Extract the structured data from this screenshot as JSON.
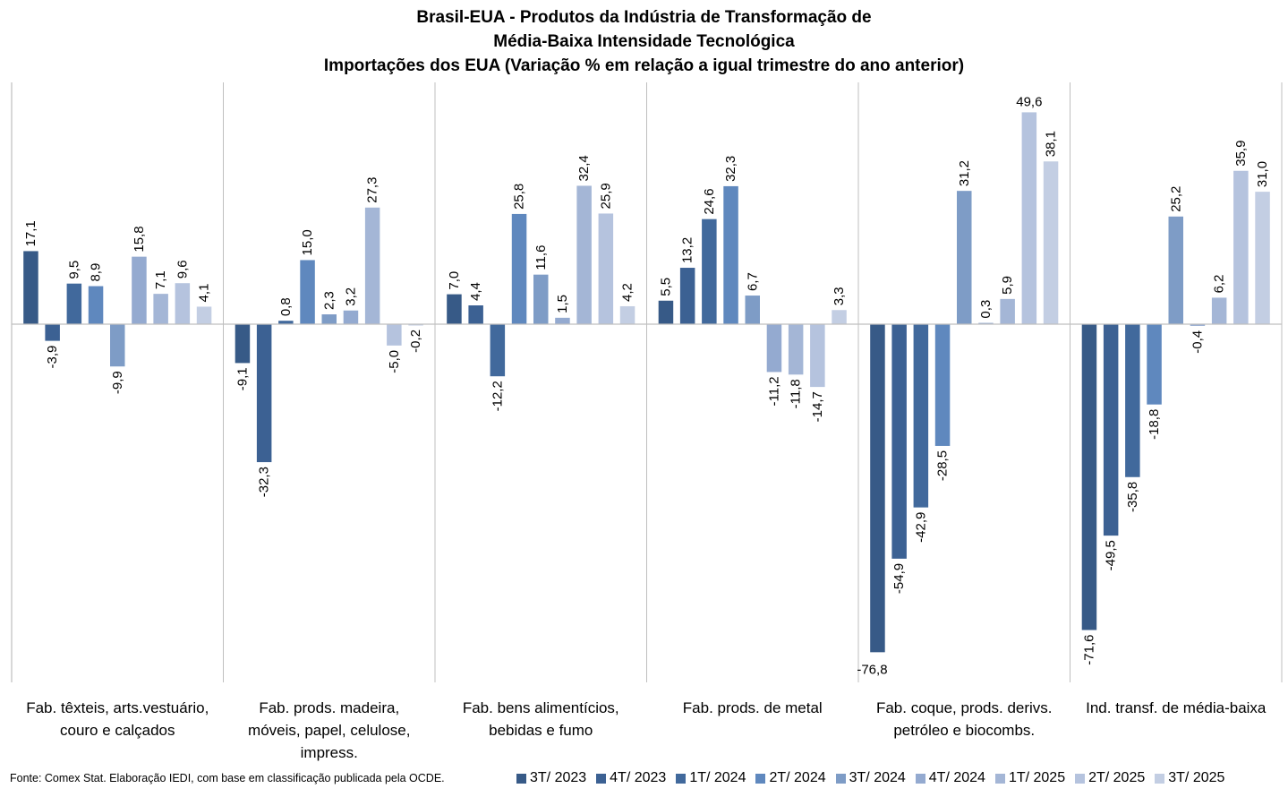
{
  "chart_data": {
    "type": "bar",
    "title": "Brasil-EUA - Produtos da Indústria de Transformação de",
    "title_lines": [
      "Brasil-EUA - Produtos da Indústria de Transformação de",
      "Média-Baixa Intensidade Tecnológica",
      "Importações dos EUA (Variação % em relação a igual trimestre do ano anterior)"
    ],
    "xlabel": "",
    "ylabel": "",
    "ylim": [
      -80,
      55
    ],
    "grid": false,
    "legend_position": "bottom-right",
    "categories": [
      "Fab. têxteis, arts.vestuário, couro e calçados",
      "Fab. prods. madeira, móveis, papel, celulose, impress.",
      "Fab. bens alimentícios, bebidas e fumo",
      "Fab. prods. de metal",
      "Fab. coque, prods. derivs. petróleo e biocombs.",
      "Ind. transf. de média-baixa"
    ],
    "series": [
      {
        "name": "3T/ 2023",
        "color": "#375A87",
        "values": [
          17.1,
          -9.1,
          7.0,
          5.5,
          -76.8,
          -71.6
        ]
      },
      {
        "name": "4T/ 2023",
        "color": "#3C6193",
        "values": [
          -3.9,
          -32.3,
          4.4,
          13.2,
          -54.9,
          -49.5
        ]
      },
      {
        "name": "1T/ 2024",
        "color": "#41699C",
        "values": [
          9.5,
          0.8,
          -12.2,
          24.6,
          -42.9,
          -35.8
        ]
      },
      {
        "name": "2T/ 2024",
        "color": "#5F88BE",
        "values": [
          8.9,
          15.0,
          25.8,
          32.3,
          -28.5,
          -18.8
        ]
      },
      {
        "name": "3T/ 2024",
        "color": "#7E9CC6",
        "values": [
          -9.9,
          2.3,
          11.6,
          6.7,
          31.2,
          25.2
        ]
      },
      {
        "name": "4T/ 2024",
        "color": "#94AAD0",
        "values": [
          15.8,
          3.2,
          1.5,
          -11.2,
          0.3,
          -0.4
        ]
      },
      {
        "name": "1T/ 2025",
        "color": "#A4B6D6",
        "values": [
          7.1,
          27.3,
          32.4,
          -11.8,
          5.9,
          6.2
        ]
      },
      {
        "name": "2T/ 2025",
        "color": "#B5C3DE",
        "values": [
          9.6,
          -5.0,
          25.9,
          -14.7,
          49.6,
          35.9
        ]
      },
      {
        "name": "3T/ 2025",
        "color": "#C3CEE3",
        "values": [
          4.1,
          -0.2,
          4.2,
          3.3,
          38.1,
          31.0
        ]
      }
    ],
    "data_labels": [
      [
        "17,1",
        "-9,1",
        "7,0",
        "5,5",
        "-76,8",
        "-71,6"
      ],
      [
        "-3,9",
        "-32,3",
        "4,4",
        "13,2",
        "-54,9",
        "-49,5"
      ],
      [
        "9,5",
        "0,8",
        "-12,2",
        "24,6",
        "-42,9",
        "-35,8"
      ],
      [
        "8,9",
        "15,0",
        "25,8",
        "32,3",
        "-28,5",
        "-18,8"
      ],
      [
        "-9,9",
        "2,3",
        "11,6",
        "6,7",
        "31,2",
        "25,2"
      ],
      [
        "15,8",
        "3,2",
        "1,5",
        "-11,2",
        "0,3",
        "-0,4"
      ],
      [
        "7,1",
        "27,3",
        "32,4",
        "-11,8",
        "5,9",
        "6,2"
      ],
      [
        "9,6",
        "-5,0",
        "25,9",
        "-14,7",
        "49,6",
        "35,9"
      ],
      [
        "4,1",
        "-0,2",
        "4,2",
        "3,3",
        "38,1",
        "31,0"
      ]
    ],
    "category_label_lines": [
      [
        "Fab. têxteis, arts.vestuário,",
        "couro e calçados"
      ],
      [
        "Fab. prods. madeira,",
        "móveis, papel, celulose,",
        "impress."
      ],
      [
        "Fab. bens alimentícios,",
        "bebidas e fumo"
      ],
      [
        "Fab. prods. de metal"
      ],
      [
        "Fab. coque, prods. derivs.",
        "petróleo e biocombs."
      ],
      [
        "Ind. transf. de média-baixa"
      ]
    ],
    "source": "Fonte: Comex Stat. Elaboração IEDI, com base em classificação publicada pela OCDE."
  },
  "colors": {
    "axis": "#BFBFBF",
    "text": "#000000"
  }
}
